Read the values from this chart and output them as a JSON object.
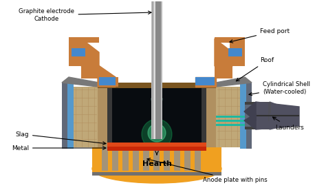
{
  "bg_color": "#ffffff",
  "labels": {
    "graphite_electrode": "Graphite electrode\nCathode",
    "feed_port": "Feed port",
    "roof": "Roof",
    "cylindrical_shell": "Cylindrical Shell\n(Water-cooled)",
    "launders": "Launders",
    "slag": "Slag",
    "metal": "Metal",
    "hearth": "Hearth",
    "anode_plate": "Anode plate with pins"
  },
  "colors": {
    "electrode_silver": "#b8b8b8",
    "electrode_dark": "#888888",
    "brick_orange": "#c87c3a",
    "brick_tan": "#d4984e",
    "blue_ring": "#4488cc",
    "refractory_beige": "#c0a878",
    "refractory_hatch": "#b09060",
    "hearth_orange": "#f0a020",
    "hearth_bottom": "#e89010",
    "slag_orange": "#e04818",
    "metal_red": "#c82808",
    "shell_gray": "#606878",
    "shell_blue": "#5599cc",
    "dark_gray": "#505058",
    "mid_gray": "#787878",
    "furnace_dark": "#383838",
    "arc_bg": "#080c10",
    "pin_gray": "#909090",
    "roof_brown": "#7a5520",
    "teal_line": "#20b8a0",
    "launder_cone": "#505060",
    "arrow_color": "#000000"
  }
}
